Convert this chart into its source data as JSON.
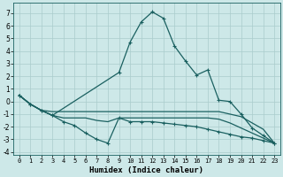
{
  "xlabel": "Humidex (Indice chaleur)",
  "background_color": "#cde8e8",
  "grid_color": "#aacccc",
  "line_color": "#1a6060",
  "xlim": [
    -0.5,
    23.5
  ],
  "ylim": [
    -4.2,
    7.8
  ],
  "yticks": [
    -4,
    -3,
    -2,
    -1,
    0,
    1,
    2,
    3,
    4,
    5,
    6,
    7
  ],
  "xticks": [
    0,
    1,
    2,
    3,
    4,
    5,
    6,
    7,
    8,
    9,
    10,
    11,
    12,
    13,
    14,
    15,
    16,
    17,
    18,
    19,
    20,
    21,
    22,
    23
  ],
  "lines": [
    {
      "x": [
        0,
        1,
        2,
        3,
        9,
        10,
        11,
        12,
        13,
        14,
        15,
        16,
        17,
        18,
        19,
        20,
        21,
        22,
        23
      ],
      "y": [
        0.5,
        -0.2,
        -0.7,
        -1.1,
        2.3,
        4.7,
        6.3,
        7.1,
        6.6,
        4.4,
        3.2,
        2.1,
        2.5,
        0.1,
        0.0,
        -1.0,
        -2.1,
        -2.7,
        -3.3
      ],
      "marker": true
    },
    {
      "x": [
        0,
        1,
        2,
        3,
        4,
        5,
        6,
        7,
        8,
        9,
        10,
        11,
        12,
        13,
        14,
        15,
        16,
        17,
        18,
        19,
        20,
        21,
        22,
        23
      ],
      "y": [
        0.5,
        -0.2,
        -0.7,
        -0.8,
        -0.8,
        -0.8,
        -0.8,
        -0.8,
        -0.8,
        -0.8,
        -0.8,
        -0.8,
        -0.8,
        -0.8,
        -0.8,
        -0.8,
        -0.8,
        -0.8,
        -0.8,
        -1.0,
        -1.2,
        -1.7,
        -2.2,
        -3.3
      ],
      "marker": false
    },
    {
      "x": [
        0,
        1,
        2,
        3,
        4,
        5,
        6,
        7,
        8,
        9,
        10,
        11,
        12,
        13,
        14,
        15,
        16,
        17,
        18,
        19,
        20,
        21,
        22,
        23
      ],
      "y": [
        0.5,
        -0.2,
        -0.7,
        -1.1,
        -1.3,
        -1.3,
        -1.3,
        -1.5,
        -1.6,
        -1.3,
        -1.3,
        -1.3,
        -1.3,
        -1.3,
        -1.3,
        -1.3,
        -1.3,
        -1.3,
        -1.4,
        -1.7,
        -2.1,
        -2.5,
        -2.9,
        -3.3
      ],
      "marker": false
    },
    {
      "x": [
        0,
        1,
        2,
        3,
        4,
        5,
        6,
        7,
        8,
        9,
        10,
        11,
        12,
        13,
        14,
        15,
        16,
        17,
        18,
        19,
        20,
        21,
        22,
        23
      ],
      "y": [
        0.5,
        -0.2,
        -0.7,
        -1.1,
        -1.6,
        -1.9,
        -2.5,
        -3.0,
        -3.3,
        -1.3,
        -1.6,
        -1.6,
        -1.6,
        -1.7,
        -1.8,
        -1.9,
        -2.0,
        -2.2,
        -2.4,
        -2.6,
        -2.8,
        -2.9,
        -3.1,
        -3.3
      ],
      "marker": true
    }
  ]
}
